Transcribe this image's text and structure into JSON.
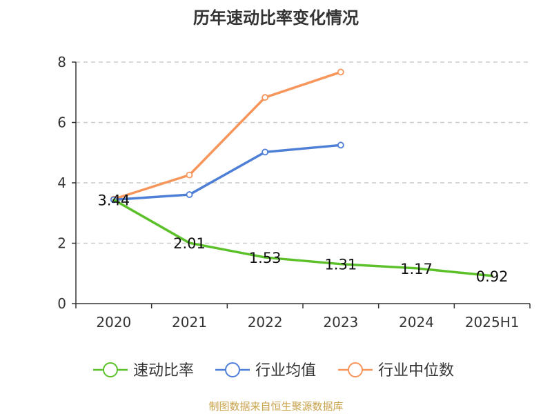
{
  "chart_data": {
    "type": "line",
    "title": "历年速动比率变化情况",
    "categories": [
      "2020",
      "2021",
      "2022",
      "2023",
      "2024",
      "2025H1"
    ],
    "ylim": [
      0,
      8
    ],
    "yticks": [
      0,
      2,
      4,
      6,
      8
    ],
    "grid": true,
    "legend_position": "bottom",
    "series": [
      {
        "name": "速动比率",
        "color": "#5cc02a",
        "values": [
          3.44,
          2.01,
          1.53,
          1.31,
          1.17,
          0.92
        ],
        "labels": [
          "3.44",
          "2.01",
          "1.53",
          "1.31",
          "1.17",
          "0.92"
        ]
      },
      {
        "name": "行业均值",
        "color": "#4e7fd6",
        "values": [
          3.44,
          3.61,
          5.02,
          5.25,
          null,
          null
        ]
      },
      {
        "name": "行业中位数",
        "color": "#f7955a",
        "values": [
          3.46,
          4.26,
          6.83,
          7.67,
          null,
          null
        ]
      }
    ]
  },
  "source": "制图数据来自恒生聚源数据库"
}
